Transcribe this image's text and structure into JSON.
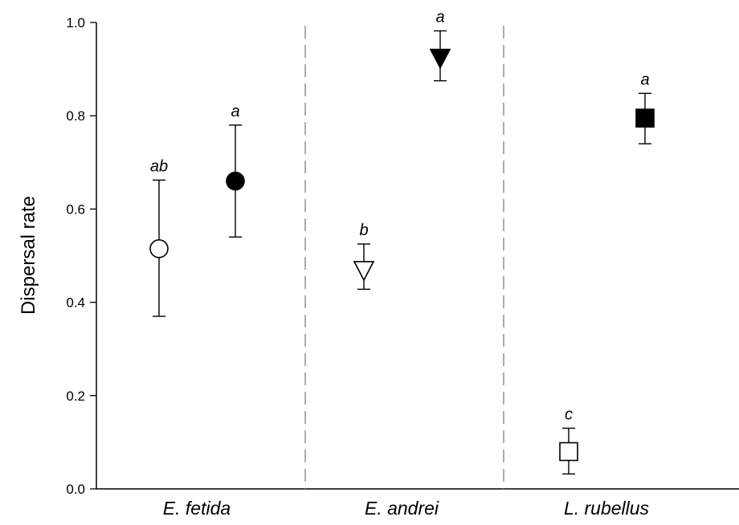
{
  "chart_data": {
    "type": "scatter",
    "title": "",
    "xlabel": "",
    "ylabel": "Dispersal rate",
    "ylim": [
      0,
      1
    ],
    "yticks": [
      "0.0",
      "0.2",
      "0.4",
      "0.6",
      "0.8",
      "1.0"
    ],
    "yticks_values": [
      0,
      0.2,
      0.4,
      0.6,
      0.8,
      1.0
    ],
    "grid": false,
    "categories": [
      "E. fetida",
      "E. andrei",
      "L. rubellus"
    ],
    "points": [
      {
        "group": "E. fetida",
        "slot": 0,
        "marker": "circle",
        "filled": false,
        "mean": 0.515,
        "lower": 0.37,
        "upper": 0.662,
        "label": "ab"
      },
      {
        "group": "E. fetida",
        "slot": 1,
        "marker": "circle",
        "filled": true,
        "mean": 0.66,
        "lower": 0.54,
        "upper": 0.78,
        "label": "a"
      },
      {
        "group": "E. andrei",
        "slot": 0,
        "marker": "triangle-down",
        "filled": false,
        "mean": 0.47,
        "lower": 0.428,
        "upper": 0.525,
        "label": "b"
      },
      {
        "group": "E. andrei",
        "slot": 1,
        "marker": "triangle-down",
        "filled": true,
        "mean": 0.925,
        "lower": 0.875,
        "upper": 0.982,
        "label": "a"
      },
      {
        "group": "L. rubellus",
        "slot": 0,
        "marker": "square",
        "filled": false,
        "mean": 0.08,
        "lower": 0.032,
        "upper": 0.13,
        "label": "c"
      },
      {
        "group": "L. rubellus",
        "slot": 1,
        "marker": "square",
        "filled": true,
        "mean": 0.795,
        "lower": 0.74,
        "upper": 0.848,
        "label": "a"
      }
    ],
    "separators": "dashed vertical lines between groups",
    "colors": {
      "marker_edge": "#000000",
      "filled": "#000000",
      "open": "#ffffff",
      "separator": "#808080"
    }
  }
}
